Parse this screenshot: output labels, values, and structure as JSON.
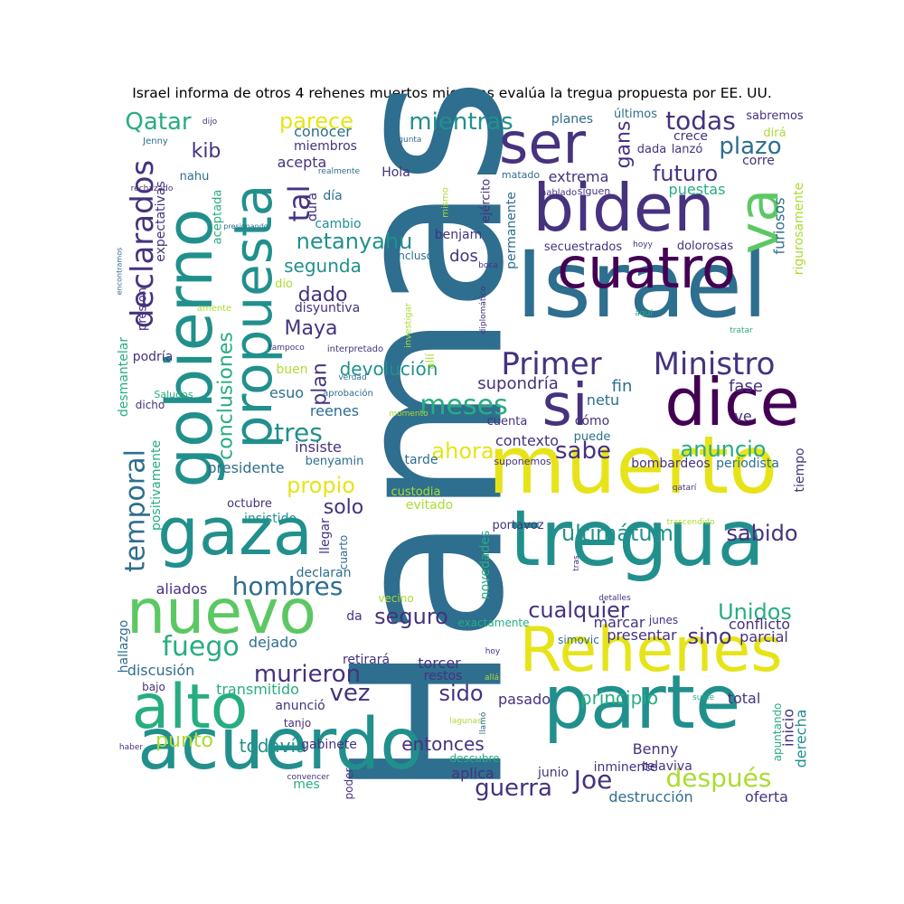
{
  "title": "Israel informa de otros 4 rehenes muertos mientras evalúa la tregua propuesta por EE. UU.",
  "colors": {
    "dark_purple": "#440154",
    "indigo": "#46327e",
    "slate_blue": "#365c8d",
    "steel_blue": "#2e6e8e",
    "teal": "#21908d",
    "sea_green": "#27ad81",
    "green": "#5cc863",
    "lime": "#aadc32",
    "yellow": "#e6e419"
  },
  "words": [
    {
      "text": "Hamas"
    },
    {
      "text": "Israel"
    },
    {
      "text": "muerto"
    },
    {
      "text": "tregua"
    },
    {
      "text": "parte"
    },
    {
      "text": "acuerdo"
    },
    {
      "text": "Rehenes"
    },
    {
      "text": "biden"
    },
    {
      "text": "cuatro"
    },
    {
      "text": "ser"
    },
    {
      "text": "va"
    },
    {
      "text": "dice"
    },
    {
      "text": "si"
    },
    {
      "text": "gobierno"
    },
    {
      "text": "propuesta"
    },
    {
      "text": "gaza"
    },
    {
      "text": "nuevo"
    },
    {
      "text": "alto"
    },
    {
      "text": "Primer"
    },
    {
      "text": "Ministro"
    },
    {
      "text": "declarados"
    },
    {
      "text": "temporal"
    },
    {
      "text": "conclusiones"
    },
    {
      "text": "netanyahu"
    },
    {
      "text": "mientras"
    },
    {
      "text": "todas"
    },
    {
      "text": "plazo"
    },
    {
      "text": "futuro"
    },
    {
      "text": "gans"
    },
    {
      "text": "parece"
    },
    {
      "text": "tal"
    },
    {
      "text": "Qatar"
    },
    {
      "text": "kib"
    },
    {
      "text": "meses"
    },
    {
      "text": "sabe"
    },
    {
      "text": "anuncio"
    },
    {
      "text": "ahora"
    },
    {
      "text": "tres"
    },
    {
      "text": "propio"
    },
    {
      "text": "solo"
    },
    {
      "text": "hombres"
    },
    {
      "text": "ultimátum"
    },
    {
      "text": "sabido"
    },
    {
      "text": "Unidos"
    },
    {
      "text": "cualquier"
    },
    {
      "text": "seguro"
    },
    {
      "text": "fuego"
    },
    {
      "text": "murieron"
    },
    {
      "text": "vez"
    },
    {
      "text": "sido"
    },
    {
      "text": "sino"
    },
    {
      "text": "principio"
    },
    {
      "text": "después"
    },
    {
      "text": "guerra"
    },
    {
      "text": "Joe"
    },
    {
      "text": "entonces"
    },
    {
      "text": "todavía"
    },
    {
      "text": "punto"
    },
    {
      "text": "Maya"
    },
    {
      "text": "dado"
    },
    {
      "text": "segunda"
    },
    {
      "text": "devolución"
    },
    {
      "text": "plan"
    },
    {
      "text": "fase"
    },
    {
      "text": "ve"
    },
    {
      "text": "supondría"
    },
    {
      "text": "fin"
    },
    {
      "text": "netu"
    },
    {
      "text": "cómo"
    },
    {
      "text": "contexto"
    },
    {
      "text": "puede"
    },
    {
      "text": "bombardeos"
    },
    {
      "text": "periodista"
    },
    {
      "text": "tiempo"
    },
    {
      "text": "evitado"
    },
    {
      "text": "custodia"
    },
    {
      "text": "tarde"
    },
    {
      "text": "benyamin"
    },
    {
      "text": "presidente"
    },
    {
      "text": "insiste"
    },
    {
      "text": "reenes"
    },
    {
      "text": "cuenta"
    },
    {
      "text": "momento"
    },
    {
      "text": "vib"
    },
    {
      "text": "aprobación"
    },
    {
      "text": "verdad"
    },
    {
      "text": "esuo"
    },
    {
      "text": "buen"
    },
    {
      "text": "interpretado"
    },
    {
      "text": "tampoco"
    },
    {
      "text": "investigar"
    },
    {
      "text": "allí"
    },
    {
      "text": "aquí"
    },
    {
      "text": "tratar"
    },
    {
      "text": "diplomático"
    },
    {
      "text": "boca"
    },
    {
      "text": "incluso"
    },
    {
      "text": "dos"
    },
    {
      "text": "benjam"
    },
    {
      "text": "ejército"
    },
    {
      "text": "permanente"
    },
    {
      "text": "secuestrados"
    },
    {
      "text": "dolorosas"
    },
    {
      "text": "hoyy"
    },
    {
      "text": "furiosos"
    },
    {
      "text": "rigurosamente"
    },
    {
      "text": "puestas"
    },
    {
      "text": "corre"
    },
    {
      "text": "crece"
    },
    {
      "text": "lanzó"
    },
    {
      "text": "dada"
    },
    {
      "text": "extrema"
    },
    {
      "text": "matado"
    },
    {
      "text": "hablado"
    },
    {
      "text": "siguen"
    },
    {
      "text": "planes"
    },
    {
      "text": "últimos"
    },
    {
      "text": "sabremos"
    },
    {
      "text": "dirá"
    },
    {
      "text": "Hola"
    },
    {
      "text": "realmente"
    },
    {
      "text": "pregunta"
    },
    {
      "text": "mismo"
    },
    {
      "text": "conocer"
    },
    {
      "text": "miembros"
    },
    {
      "text": "acepta"
    },
    {
      "text": "dura"
    },
    {
      "text": "día"
    },
    {
      "text": "cambio"
    },
    {
      "text": "dio"
    },
    {
      "text": "disyuntiva"
    },
    {
      "text": "nahu"
    },
    {
      "text": "aceptada"
    },
    {
      "text": "expectativas"
    },
    {
      "text": "presionando"
    },
    {
      "text": "rechazado"
    },
    {
      "text": "Jenny"
    },
    {
      "text": "dijo"
    },
    {
      "text": "encontramos"
    },
    {
      "text": "presión"
    },
    {
      "text": "amente"
    },
    {
      "text": "podría"
    },
    {
      "text": "desmantelar"
    },
    {
      "text": "Saludos"
    },
    {
      "text": "dicho"
    },
    {
      "text": "positivamente"
    },
    {
      "text": "octubre"
    },
    {
      "text": "insistido"
    },
    {
      "text": "llegar"
    },
    {
      "text": "cuarto"
    },
    {
      "text": "novedades"
    },
    {
      "text": "portavoz"
    },
    {
      "text": "trascendido"
    },
    {
      "text": "qatarí"
    },
    {
      "text": "tras"
    },
    {
      "text": "detalles"
    },
    {
      "text": "declaran"
    },
    {
      "text": "aliados"
    },
    {
      "text": "hallazgo"
    },
    {
      "text": "da"
    },
    {
      "text": "vecino"
    },
    {
      "text": "exactamente"
    },
    {
      "text": "junes"
    },
    {
      "text": "simovic"
    },
    {
      "text": "marcar"
    },
    {
      "text": "conflicto"
    },
    {
      "text": "presentar"
    },
    {
      "text": "parcial"
    },
    {
      "text": "dejado"
    },
    {
      "text": "retirará"
    },
    {
      "text": "discusión"
    },
    {
      "text": "torcer"
    },
    {
      "text": "restos"
    },
    {
      "text": "hoy"
    },
    {
      "text": "allá"
    },
    {
      "text": "transmitido"
    },
    {
      "text": "anunció"
    },
    {
      "text": "bajo"
    },
    {
      "text": "tanjo"
    },
    {
      "text": "lagunas"
    },
    {
      "text": "llamó"
    },
    {
      "text": "pasado"
    },
    {
      "text": "suele"
    },
    {
      "text": "total"
    },
    {
      "text": "apuntando"
    },
    {
      "text": "inicio"
    },
    {
      "text": "derecha"
    },
    {
      "text": "Benny"
    },
    {
      "text": "telaviva"
    },
    {
      "text": "inminente"
    },
    {
      "text": "junio"
    },
    {
      "text": "aplica"
    },
    {
      "text": "descubre"
    },
    {
      "text": "gabinete"
    },
    {
      "text": "haber"
    },
    {
      "text": "convencer"
    },
    {
      "text": "mes"
    },
    {
      "text": "poder"
    },
    {
      "text": "destrucción"
    },
    {
      "text": "oferta"
    },
    {
      "text": "suponemos"
    }
  ]
}
